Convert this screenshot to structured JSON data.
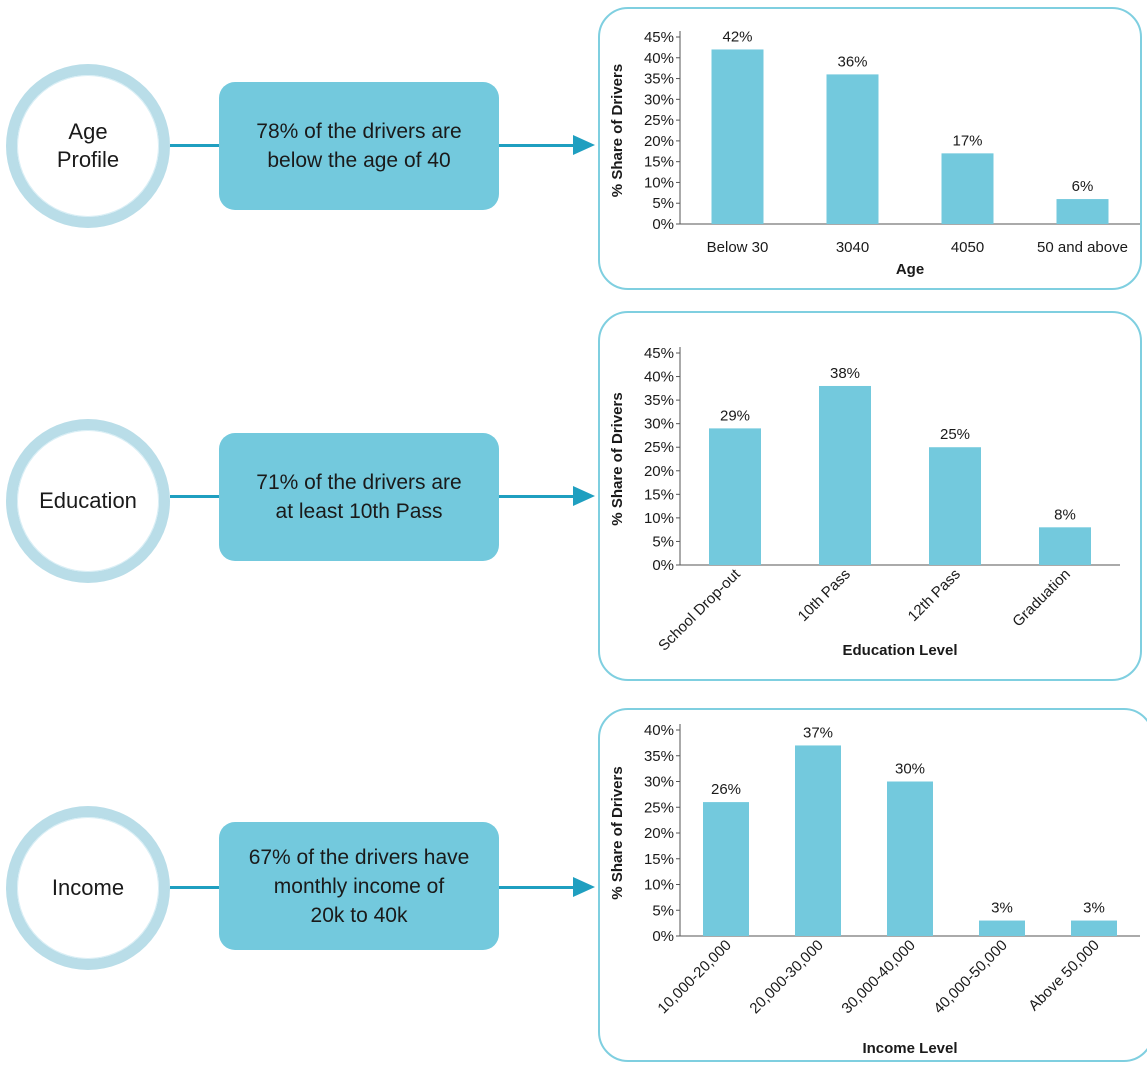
{
  "rows": [
    {
      "circle_label": [
        "Age",
        "Profile"
      ],
      "box_text": [
        "78% of the drivers are",
        "below the age of 40"
      ]
    },
    {
      "circle_label": [
        "Education"
      ],
      "box_text": [
        "71% of the drivers are",
        "at least 10th Pass"
      ]
    },
    {
      "circle_label": [
        "Income"
      ],
      "box_text": [
        "67% of the drivers have",
        "monthly income of",
        "20k to 40k"
      ]
    }
  ],
  "colors": {
    "bar": "#73c9dd",
    "panel_border": "#7fcfe0",
    "arrow": "#1f9fc0",
    "box": "#73c9dd"
  },
  "chart_data": [
    {
      "type": "bar",
      "categories": [
        "Below 30",
        "3040",
        "4050",
        "50 and above"
      ],
      "values": [
        42,
        36,
        17,
        6
      ],
      "data_labels": [
        "42%",
        "36%",
        "17%",
        "6%"
      ],
      "yticks": [
        "0%",
        "5%",
        "10%",
        "15%",
        "20%",
        "25%",
        "30%",
        "35%",
        "40%",
        "45%"
      ],
      "ylim": [
        0,
        45
      ],
      "xlabel": "Age",
      "ylabel": "% Share of Drivers",
      "rotated_categories": false,
      "grid": false
    },
    {
      "type": "bar",
      "categories": [
        "School Drop-out",
        "10th Pass",
        "12th Pass",
        "Graduation"
      ],
      "values": [
        29,
        38,
        25,
        8
      ],
      "data_labels": [
        "29%",
        "38%",
        "25%",
        "8%"
      ],
      "yticks": [
        "0%",
        "5%",
        "10%",
        "15%",
        "20%",
        "25%",
        "30%",
        "35%",
        "40%",
        "45%"
      ],
      "ylim": [
        0,
        45
      ],
      "xlabel": "Education Level",
      "ylabel": "% Share of Drivers",
      "rotated_categories": true,
      "grid": false
    },
    {
      "type": "bar",
      "categories": [
        "10,000-20,000",
        "20,000-30,000",
        "30,000-40,000",
        "40,000-50,000",
        "Above 50,000"
      ],
      "values": [
        26,
        37,
        30,
        3,
        3
      ],
      "data_labels": [
        "26%",
        "37%",
        "30%",
        "3%",
        "3%"
      ],
      "yticks": [
        "0%",
        "5%",
        "10%",
        "15%",
        "20%",
        "25%",
        "30%",
        "35%",
        "40%"
      ],
      "ylim": [
        0,
        40
      ],
      "xlabel": "Income Level",
      "ylabel": "% Share of Drivers",
      "rotated_categories": true,
      "grid": false
    }
  ]
}
